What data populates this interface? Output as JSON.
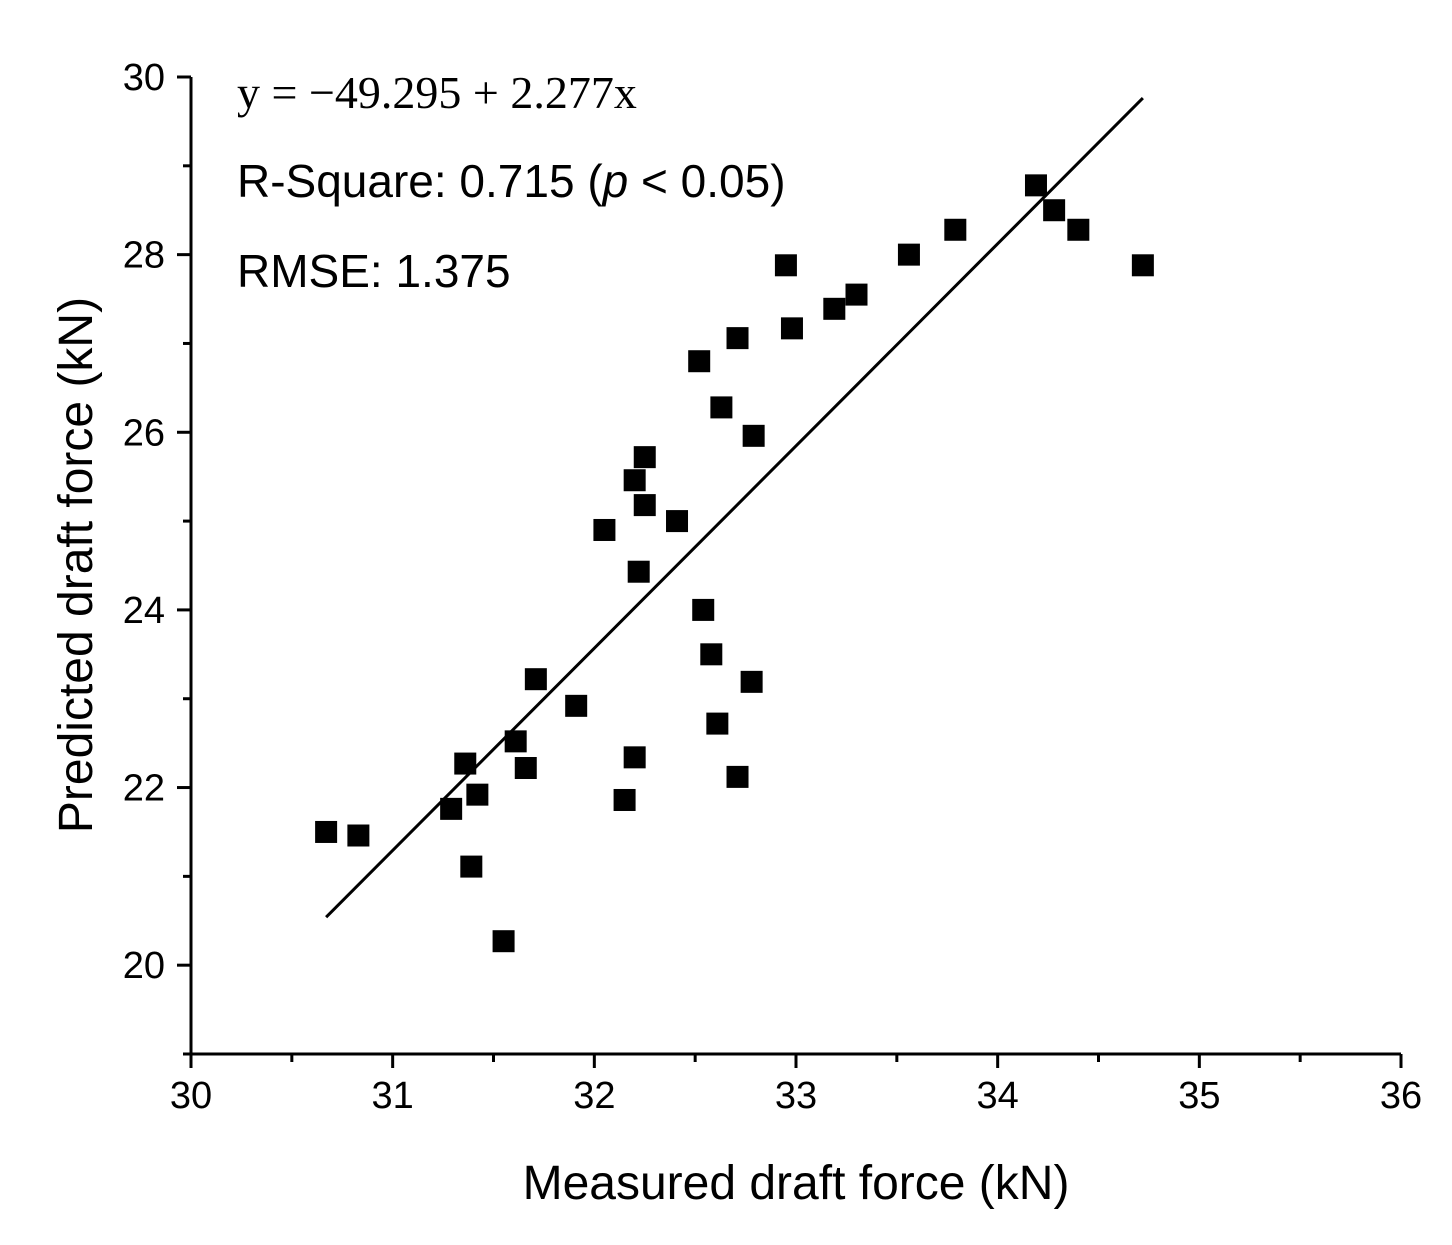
{
  "chart_data": {
    "type": "scatter",
    "title": "",
    "xlabel": "Measured draft force (kN)",
    "ylabel": "Predicted draft force (kN)",
    "xlim": [
      30,
      36
    ],
    "ylim": [
      19,
      30
    ],
    "x_ticks": [
      30,
      31,
      32,
      33,
      34,
      35,
      36
    ],
    "y_ticks": [
      20,
      22,
      24,
      26,
      28,
      30
    ],
    "x_tick_labels": [
      "30",
      "31",
      "32",
      "33",
      "34",
      "35",
      "36"
    ],
    "y_tick_labels": [
      "20",
      "22",
      "24",
      "26",
      "28",
      "30"
    ],
    "marker": "square",
    "marker_color": "#000000",
    "series": [
      {
        "name": "data",
        "points": [
          [
            30.67,
            21.5
          ],
          [
            30.83,
            21.46
          ],
          [
            31.29,
            21.76
          ],
          [
            31.36,
            22.27
          ],
          [
            31.42,
            21.92
          ],
          [
            31.39,
            21.11
          ],
          [
            31.55,
            20.27
          ],
          [
            31.61,
            22.52
          ],
          [
            31.66,
            22.22
          ],
          [
            31.71,
            23.22
          ],
          [
            31.91,
            22.92
          ],
          [
            32.05,
            24.9
          ],
          [
            32.15,
            21.86
          ],
          [
            32.2,
            22.34
          ],
          [
            32.2,
            25.46
          ],
          [
            32.22,
            24.43
          ],
          [
            32.25,
            25.72
          ],
          [
            32.25,
            25.18
          ],
          [
            32.41,
            25.0
          ],
          [
            32.52,
            26.8
          ],
          [
            32.54,
            24.0
          ],
          [
            32.58,
            23.5
          ],
          [
            32.61,
            22.72
          ],
          [
            32.63,
            26.28
          ],
          [
            32.71,
            27.06
          ],
          [
            32.71,
            22.12
          ],
          [
            32.79,
            25.96
          ],
          [
            32.78,
            23.19
          ],
          [
            32.95,
            27.88
          ],
          [
            32.98,
            27.17
          ],
          [
            33.19,
            27.39
          ],
          [
            33.3,
            27.55
          ],
          [
            33.56,
            28.0
          ],
          [
            33.79,
            28.28
          ],
          [
            34.19,
            28.78
          ],
          [
            34.28,
            28.5
          ],
          [
            34.4,
            28.28
          ],
          [
            34.72,
            27.88
          ]
        ]
      }
    ],
    "fit_line": {
      "intercept": -49.295,
      "slope": 2.277,
      "x_range": [
        30.67,
        34.72
      ]
    },
    "annotations": {
      "equation": "y = −49.295 + 2.277x",
      "r_square_prefix": "R-Square: 0.715 (",
      "r_square_p": "p",
      "r_square_suffix": " < 0.05)",
      "rmse": "RMSE: 1.375"
    }
  }
}
